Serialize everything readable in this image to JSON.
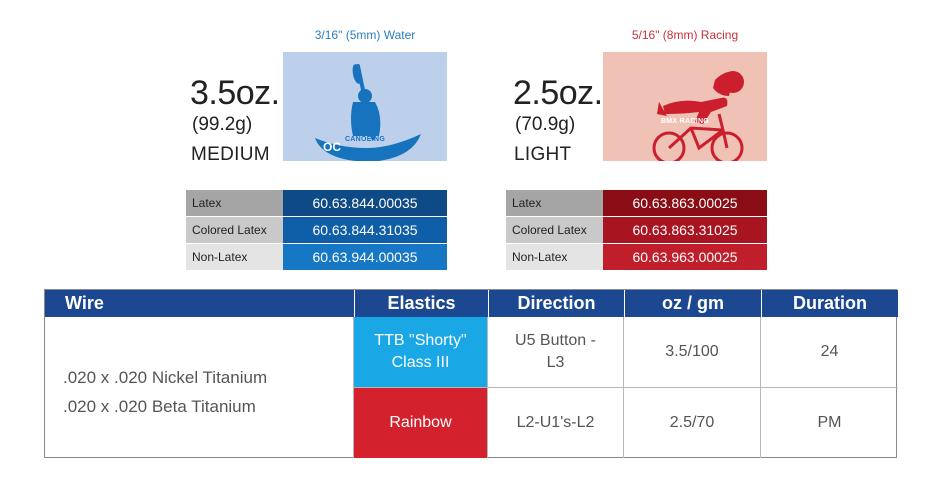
{
  "products": [
    {
      "caption": "3/16\" (5mm) Water",
      "weight": "3.5oz.",
      "grams": "(99.2g)",
      "grade": "MEDIUM",
      "sport": "CANOEING",
      "icon": "canoe-icon",
      "colors": {
        "caption": "#2a7dc0",
        "swatch": "#bcd0ec",
        "figure": "#1773bd",
        "codes": [
          "#0e4a86",
          "#0f5ea8",
          "#1677c4"
        ]
      },
      "codes": [
        {
          "label": "Latex",
          "value": "60.63.844.00035"
        },
        {
          "label": "Colored Latex",
          "value": "60.63.844.31035"
        },
        {
          "label": "Non-Latex",
          "value": "60.63.944.00035"
        }
      ]
    },
    {
      "caption": "5/16\" (8mm) Racing",
      "weight": "2.5oz.",
      "grams": "(70.9g)",
      "grade": "LIGHT",
      "sport": "BMX RACING",
      "icon": "bmx-rider-icon",
      "colors": {
        "caption": "#c8323b",
        "swatch": "#f0c1b5",
        "figure": "#cc1f2e",
        "codes": [
          "#8a0d16",
          "#a8141f",
          "#c01e2b"
        ]
      },
      "codes": [
        {
          "label": "Latex",
          "value": "60.63.863.00025"
        },
        {
          "label": "Colored Latex",
          "value": "60.63.863.31025"
        },
        {
          "label": "Non-Latex",
          "value": "60.63.963.00025"
        }
      ]
    }
  ],
  "label_colors": [
    "#a5a5a5",
    "#c9c9c9",
    "#e4e4e4"
  ],
  "table": {
    "headers": [
      "Wire",
      "Elastics",
      "Direction",
      "oz / gm",
      "Duration"
    ],
    "wire_lines": [
      ".020 x .020 Nickel Titanium",
      ".020 x .020 Beta Titanium"
    ],
    "rows": [
      {
        "elastics": "TTB \"Shorty\" Class III",
        "elastics_color": "#1aa7e6",
        "direction": "U5 Button - L3",
        "ozgm": "3.5/100",
        "duration": "24"
      },
      {
        "elastics": "Rainbow",
        "elastics_color": "#d3222d",
        "direction": "L2-U1's-L2",
        "ozgm": "2.5/70",
        "duration": "PM"
      }
    ]
  }
}
